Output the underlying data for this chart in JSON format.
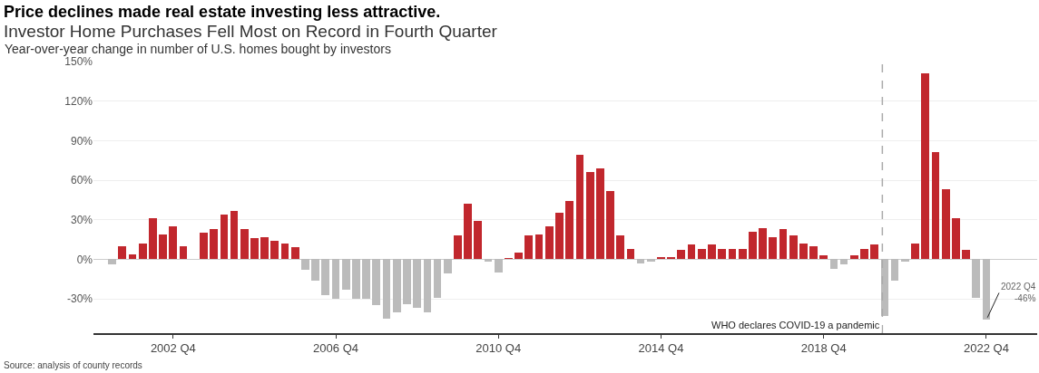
{
  "chart_data": {
    "type": "bar",
    "title": "Investor Home Purchases Fell Most on Record in Fourth Quarter",
    "subtitle": "Year-over-year change in number of U.S. homes bought by investors",
    "x": [
      "2001-04",
      "2001-07",
      "2001-10",
      "2002-01",
      "2002-04",
      "2002-07",
      "2002-10",
      "2003-01",
      "2003-04",
      "2003-07",
      "2003-10",
      "2004-01",
      "2004-04",
      "2004-07",
      "2004-10",
      "2005-01",
      "2005-04",
      "2005-07",
      "2005-10",
      "2006-01",
      "2006-04",
      "2006-07",
      "2006-10",
      "2007-01",
      "2007-04",
      "2007-07",
      "2007-10",
      "2008-01",
      "2008-04",
      "2008-07",
      "2008-10",
      "2009-01",
      "2009-04",
      "2009-07",
      "2009-10",
      "2010-01",
      "2010-04",
      "2010-07",
      "2010-10",
      "2011-01",
      "2011-04",
      "2011-07",
      "2011-10",
      "2012-01",
      "2012-04",
      "2012-07",
      "2012-10",
      "2013-01",
      "2013-04",
      "2013-07",
      "2013-10",
      "2014-01",
      "2014-04",
      "2014-07",
      "2014-10",
      "2015-01",
      "2015-04",
      "2015-07",
      "2015-10",
      "2016-01",
      "2016-04",
      "2016-07",
      "2016-10",
      "2017-01",
      "2017-04",
      "2017-07",
      "2017-10",
      "2018-01",
      "2018-04",
      "2018-07",
      "2018-10",
      "2019-01",
      "2019-04",
      "2019-07",
      "2019-10",
      "2020-01",
      "2020-04",
      "2020-07",
      "2020-10",
      "2021-01",
      "2021-04",
      "2021-07",
      "2021-10",
      "2022-01",
      "2022-04",
      "2022-07",
      "2022-10"
    ],
    "values": [
      -4,
      10,
      4,
      12,
      31,
      19,
      25,
      10,
      0,
      20,
      23,
      34,
      37,
      23,
      16,
      17,
      14,
      12,
      9,
      -8,
      -16,
      -27,
      -30,
      -23,
      -30,
      -30,
      -35,
      -45,
      -40,
      -34,
      -37,
      -40,
      -29,
      -11,
      18,
      42,
      29,
      -2,
      -10,
      1,
      5,
      18,
      19,
      25,
      35,
      44,
      79,
      66,
      69,
      52,
      18,
      8,
      -3,
      -2,
      2,
      2,
      7,
      11,
      8,
      11,
      8,
      8,
      8,
      21,
      24,
      17,
      23,
      18,
      12,
      10,
      3,
      -7,
      -4,
      3,
      8,
      11,
      -43,
      -16,
      -2,
      12,
      141,
      81,
      53,
      31,
      7,
      -29,
      -46
    ],
    "colors": [
      "#bbbbbb",
      "#c1272d",
      "#c1272d",
      "#c1272d",
      "#c1272d",
      "#c1272d",
      "#c1272d",
      "#c1272d",
      "#c1272d",
      "#c1272d",
      "#c1272d",
      "#c1272d",
      "#c1272d",
      "#c1272d",
      "#c1272d",
      "#c1272d",
      "#c1272d",
      "#c1272d",
      "#c1272d",
      "#bbbbbb",
      "#bbbbbb",
      "#bbbbbb",
      "#bbbbbb",
      "#bbbbbb",
      "#bbbbbb",
      "#bbbbbb",
      "#bbbbbb",
      "#bbbbbb",
      "#bbbbbb",
      "#bbbbbb",
      "#bbbbbb",
      "#bbbbbb",
      "#bbbbbb",
      "#bbbbbb",
      "#c1272d",
      "#c1272d",
      "#c1272d",
      "#bbbbbb",
      "#bbbbbb",
      "#c1272d",
      "#c1272d",
      "#c1272d",
      "#c1272d",
      "#c1272d",
      "#c1272d",
      "#c1272d",
      "#c1272d",
      "#c1272d",
      "#c1272d",
      "#c1272d",
      "#c1272d",
      "#c1272d",
      "#bbbbbb",
      "#bbbbbb",
      "#c1272d",
      "#c1272d",
      "#c1272d",
      "#c1272d",
      "#c1272d",
      "#c1272d",
      "#c1272d",
      "#c1272d",
      "#c1272d",
      "#c1272d",
      "#c1272d",
      "#c1272d",
      "#c1272d",
      "#c1272d",
      "#c1272d",
      "#c1272d",
      "#c1272d",
      "#bbbbbb",
      "#bbbbbb",
      "#c1272d",
      "#c1272d",
      "#c1272d",
      "#bbbbbb",
      "#bbbbbb",
      "#bbbbbb",
      "#c1272d",
      "#c1272d",
      "#c1272d",
      "#c1272d",
      "#c1272d",
      "#c1272d",
      "#bbbbbb",
      "#bbbbbb"
    ],
    "xlim": [
      "2000-10-15",
      "2024-01-01"
    ],
    "xticks": [
      {
        "value": "2002-10",
        "label": "2002 Q4"
      },
      {
        "value": "2006-10",
        "label": "2006 Q4"
      },
      {
        "value": "2010-10",
        "label": "2010 Q4"
      },
      {
        "value": "2014-10",
        "label": "2014 Q4"
      },
      {
        "value": "2018-10",
        "label": "2018 Q4"
      },
      {
        "value": "2022-10",
        "label": "2022 Q4"
      }
    ],
    "ylim": [
      -56,
      150
    ],
    "yticks": [
      {
        "value": -30,
        "label": "-30%"
      },
      {
        "value": 0,
        "label": "0%"
      },
      {
        "value": 30,
        "label": "30%"
      },
      {
        "value": 60,
        "label": "60%"
      },
      {
        "value": 90,
        "label": "90%"
      },
      {
        "value": 120,
        "label": "120%"
      },
      {
        "value": 150,
        "label": "150%"
      }
    ],
    "grid": "y",
    "legend": false,
    "ref_lines": [
      {
        "axis": "x",
        "value": "2020-03-11",
        "label": "WHO declares COVID-19 a pandemic",
        "color": "#aaaaaa",
        "line_style": "dashed"
      }
    ],
    "annotations": [
      "Price declines made real estate investing less attractive.",
      {
        "text": "2022 Q4\n-46%",
        "x": "2022-10",
        "y": -46
      },
      "Source: analysis of county records"
    ]
  }
}
